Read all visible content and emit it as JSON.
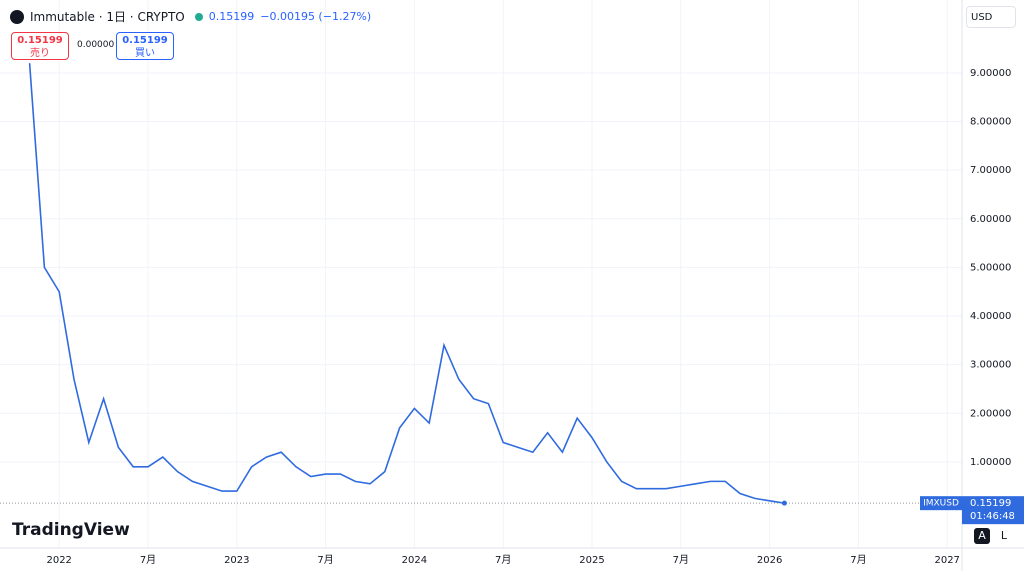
{
  "header": {
    "symbol": "Immutable · 1日 · CRYPTO",
    "price": "0.15199",
    "change": "−0.00195 (−1.27%)",
    "sell_price": "0.15199",
    "sell_label": "売り",
    "spread": "0.00000",
    "buy_price": "0.15199",
    "buy_label": "買い",
    "currency": "USD",
    "countdown": "01:46:48",
    "brand": "TradingView",
    "auto_button": "A",
    "log_button": "L"
  },
  "chart_data": {
    "type": "line",
    "x": [
      "2021-11",
      "2021-12",
      "2022-01",
      "2022-02",
      "2022-03",
      "2022-04",
      "2022-05",
      "2022-06",
      "2022-07",
      "2022-08",
      "2022-09",
      "2022-10",
      "2022-11",
      "2022-12",
      "2023-01",
      "2023-02",
      "2023-03",
      "2023-04",
      "2023-05",
      "2023-06",
      "2023-07",
      "2023-08",
      "2023-09",
      "2023-10",
      "2023-11",
      "2023-12",
      "2024-01",
      "2024-02",
      "2024-03",
      "2024-04",
      "2024-05",
      "2024-06",
      "2024-07",
      "2024-08",
      "2024-09",
      "2024-10",
      "2024-11",
      "2024-12",
      "2025-01",
      "2025-02",
      "2025-03",
      "2025-04",
      "2025-05",
      "2025-06",
      "2025-07",
      "2025-08",
      "2025-09",
      "2025-10",
      "2025-11",
      "2025-12",
      "2026-01",
      "2026-02"
    ],
    "series": [
      {
        "name": "IMXUSD",
        "color": "#2f6bdf",
        "values": [
          9.2,
          5.0,
          4.5,
          2.7,
          1.4,
          2.3,
          1.3,
          0.9,
          0.9,
          1.1,
          0.8,
          0.6,
          0.5,
          0.4,
          0.4,
          0.9,
          1.1,
          1.2,
          0.9,
          0.7,
          0.75,
          0.75,
          0.6,
          0.55,
          0.8,
          1.7,
          2.1,
          1.8,
          3.4,
          2.7,
          2.3,
          2.2,
          1.4,
          1.3,
          1.2,
          1.6,
          1.2,
          1.9,
          1.5,
          1.0,
          0.6,
          0.45,
          0.45,
          0.45,
          0.5,
          0.55,
          0.6,
          0.6,
          0.35,
          0.25,
          0.2,
          0.15199
        ],
        "value_labels": [
          null,
          null,
          null,
          null,
          null,
          null,
          null,
          null,
          null,
          null,
          null,
          null,
          null,
          null,
          null,
          null,
          null,
          null,
          null,
          null,
          null,
          null,
          null,
          null,
          null,
          null,
          null,
          null,
          null,
          null,
          null,
          null,
          null,
          null,
          null,
          null,
          null,
          null,
          null,
          null,
          null,
          null,
          null,
          null,
          null,
          null,
          null,
          null,
          null,
          null,
          null,
          "0.15199"
        ]
      }
    ],
    "xlim": [
      "2021-09",
      "2027-02"
    ],
    "xticks": [
      {
        "value": "2022-01",
        "label": "2022"
      },
      {
        "value": "2022-07",
        "label": "7月"
      },
      {
        "value": "2023-01",
        "label": "2023"
      },
      {
        "value": "2023-07",
        "label": "7月"
      },
      {
        "value": "2024-01",
        "label": "2024"
      },
      {
        "value": "2024-07",
        "label": "7月"
      },
      {
        "value": "2025-01",
        "label": "2025"
      },
      {
        "value": "2025-07",
        "label": "7月"
      },
      {
        "value": "2026-01",
        "label": "2026"
      },
      {
        "value": "2026-07",
        "label": "7月"
      },
      {
        "value": "2027-01",
        "label": "2027"
      }
    ],
    "ylim": [
      -0.77,
      10.5
    ],
    "yticks": [
      {
        "value": 1,
        "label": "1.00000"
      },
      {
        "value": 2,
        "label": "2.00000"
      },
      {
        "value": 3,
        "label": "3.00000"
      },
      {
        "value": 4,
        "label": "4.00000"
      },
      {
        "value": 5,
        "label": "5.00000"
      },
      {
        "value": 6,
        "label": "6.00000"
      },
      {
        "value": 7,
        "label": "7.00000"
      },
      {
        "value": 8,
        "label": "8.00000"
      },
      {
        "value": 9,
        "label": "9.00000"
      }
    ],
    "grid": true
  }
}
